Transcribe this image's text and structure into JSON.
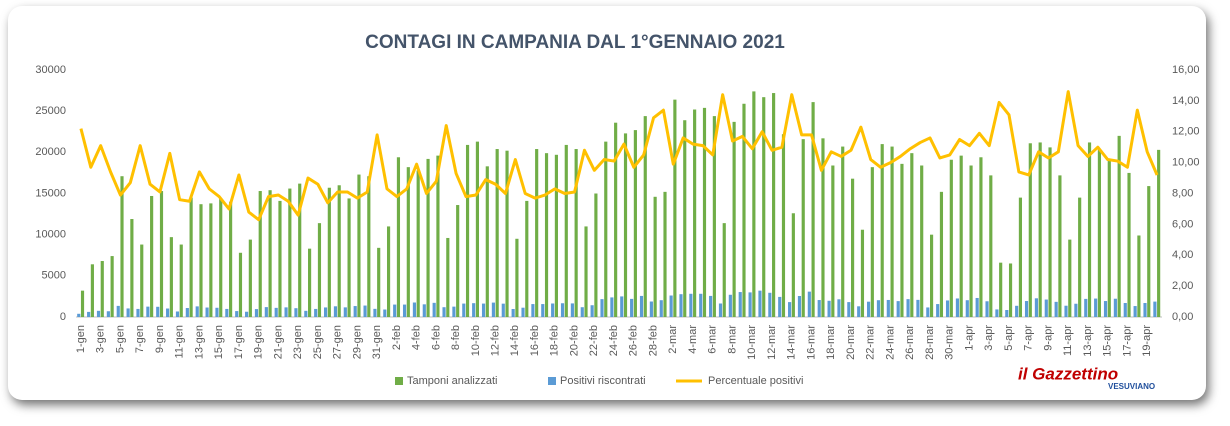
{
  "chart_data": {
    "type": "bar-line",
    "title": "CONTAGI IN CAMPANIA DAL 1°GENNAIO 2021",
    "categories": [
      "1-gen",
      null,
      "3-gen",
      null,
      "5-gen",
      null,
      "7-gen",
      null,
      "9-gen",
      null,
      "11-gen",
      null,
      "13-gen",
      null,
      "15-gen",
      null,
      "17-gen",
      null,
      "19-gen",
      null,
      "21-gen",
      null,
      "23-gen",
      null,
      "25-gen",
      null,
      "27-gen",
      null,
      "29-gen",
      null,
      "31-gen",
      null,
      "2-feb",
      null,
      "4-feb",
      null,
      "6-feb",
      null,
      "8-feb",
      null,
      "10-feb",
      null,
      "12-feb",
      null,
      "14-feb",
      null,
      "16-feb",
      null,
      "18-feb",
      null,
      "20-feb",
      null,
      "22-feb",
      null,
      "24-feb",
      null,
      "26-feb",
      null,
      "28-feb",
      null,
      "2-mar",
      null,
      "4-mar",
      null,
      "6-mar",
      null,
      "8-mar",
      null,
      "10-mar",
      null,
      "12-mar",
      null,
      "14-mar",
      null,
      "16-mar",
      null,
      "18-mar",
      null,
      "20-mar",
      null,
      "22-mar",
      null,
      "24-mar",
      null,
      "26-mar",
      null,
      "28-mar",
      null,
      "30-mar",
      null,
      "1-apr",
      null,
      "3-apr",
      null,
      "5-apr",
      null,
      "7-apr",
      null,
      "9-apr",
      null,
      "11-apr",
      null,
      "13-apr",
      null,
      "15-apr",
      null,
      "17-apr",
      null,
      "19-apr",
      null
    ],
    "series": [
      {
        "name": "Tamponi analizzati",
        "color": "#70ad47",
        "kind": "bar",
        "values": [
          3200,
          6400,
          6800,
          7400,
          17100,
          11900,
          8800,
          14700,
          15300,
          9700,
          8800,
          14500,
          13700,
          13800,
          14400,
          14000,
          7800,
          9400,
          15300,
          15400,
          14100,
          15600,
          16200,
          8300,
          11400,
          15700,
          16000,
          14400,
          17300,
          17100,
          8400,
          11000,
          19400,
          18200,
          17800,
          19200,
          19600,
          9600,
          13600,
          20900,
          21300,
          18300,
          20400,
          20200,
          9500,
          14100,
          20400,
          19900,
          19700,
          20900,
          20400,
          11000,
          15000,
          21300,
          23600,
          22300,
          22700,
          24400,
          14600,
          15200,
          26400,
          23900,
          25200,
          25400,
          24400,
          11400,
          23700,
          25900,
          27400,
          26700,
          27200,
          22200,
          12600,
          21600,
          26100,
          21700,
          18400,
          20700,
          16800,
          10600,
          18200,
          21000,
          20700,
          18600,
          19900,
          18400,
          10000,
          15200,
          19100,
          19600,
          18400,
          19400,
          17200,
          6600,
          6500,
          14500,
          21100,
          21200,
          20600,
          17200,
          9400,
          14500,
          21200,
          20400,
          19000,
          22000,
          17500,
          9900,
          15900,
          20300
        ]
      },
      {
        "name": "Positivi riscontrati",
        "color": "#5b9bd5",
        "kind": "bar",
        "values": [
          390,
          620,
          750,
          700,
          1350,
          1040,
          980,
          1260,
          1240,
          1030,
          670,
          1090,
          1290,
          1150,
          1120,
          980,
          720,
          640,
          960,
          1200,
          1110,
          1170,
          1070,
          750,
          980,
          1160,
          1300,
          1170,
          1330,
          1390,
          990,
          910,
          1510,
          1510,
          1760,
          1540,
          1720,
          1190,
          1260,
          1630,
          1680,
          1630,
          1750,
          1620,
          970,
          1130,
          1570,
          1570,
          1640,
          1670,
          1650,
          1190,
          1430,
          2170,
          2380,
          2500,
          2200,
          2560,
          1880,
          2040,
          2610,
          2770,
          2820,
          2820,
          2560,
          1640,
          2700,
          3030,
          2990,
          3200,
          2940,
          2440,
          1810,
          2550,
          3080,
          2060,
          1970,
          2150,
          1810,
          1300,
          1860,
          2040,
          2070,
          1930,
          2170,
          2080,
          1160,
          1570,
          2010,
          2250,
          2040,
          2310,
          1910,
          920,
          850,
          1360,
          1940,
          2270,
          2120,
          1840,
          1370,
          1610,
          2200,
          2240,
          1940,
          2220,
          1700,
          1330,
          1700,
          1870
        ]
      },
      {
        "name": "Percentuale positivi",
        "color": "#ffc000",
        "kind": "line",
        "axis": "y2",
        "values": [
          12.2,
          9.7,
          11.1,
          9.4,
          7.9,
          8.7,
          11.1,
          8.6,
          8.1,
          10.6,
          7.6,
          7.5,
          9.4,
          8.3,
          7.8,
          7.0,
          9.2,
          6.8,
          6.3,
          7.8,
          7.9,
          7.5,
          6.6,
          9.0,
          8.6,
          7.4,
          8.1,
          8.1,
          7.7,
          8.1,
          11.8,
          8.3,
          7.8,
          8.3,
          9.9,
          8.0,
          8.8,
          12.4,
          9.3,
          7.8,
          7.9,
          8.9,
          8.6,
          8.0,
          10.2,
          8.0,
          7.7,
          7.9,
          8.3,
          8.0,
          8.1,
          10.8,
          9.5,
          10.2,
          10.1,
          11.2,
          9.7,
          10.5,
          12.9,
          13.4,
          9.9,
          11.6,
          11.2,
          11.1,
          10.5,
          14.4,
          11.4,
          11.7,
          10.9,
          12.0,
          10.8,
          11.0,
          14.4,
          11.8,
          11.8,
          9.5,
          10.7,
          10.4,
          10.8,
          12.3,
          10.2,
          9.7,
          10.0,
          10.4,
          10.9,
          11.3,
          11.6,
          10.3,
          10.5,
          11.5,
          11.1,
          11.9,
          11.1,
          13.9,
          13.1,
          9.4,
          9.2,
          10.7,
          10.3,
          10.7,
          14.6,
          11.1,
          10.4,
          11.0,
          10.2,
          10.1,
          9.7,
          13.4,
          10.7,
          9.2
        ]
      }
    ],
    "ylim": [
      0,
      30000
    ],
    "yticks": [
      0,
      5000,
      10000,
      15000,
      20000,
      25000,
      30000
    ],
    "y2lim": [
      0,
      16
    ],
    "y2ticks": [
      {
        "value": 0,
        "label": "0,00"
      },
      {
        "value": 2,
        "label": "2,00"
      },
      {
        "value": 4,
        "label": "4,00"
      },
      {
        "value": 6,
        "label": "6,00"
      },
      {
        "value": 8,
        "label": "8,00"
      },
      {
        "value": 10,
        "label": "10,00"
      },
      {
        "value": 12,
        "label": "12,00"
      },
      {
        "value": 14,
        "label": "14,00"
      },
      {
        "value": 16,
        "label": "16,00"
      }
    ],
    "grid": false,
    "legend": "bottom"
  },
  "logo": {
    "name": "il Gazzettino",
    "sub": "VESUVIANO"
  }
}
